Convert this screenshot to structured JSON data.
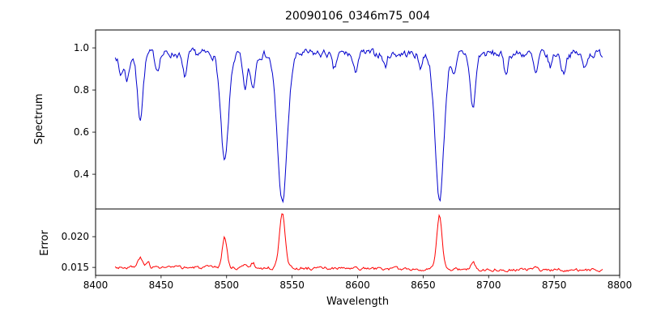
{
  "chart_data": [
    {
      "type": "line",
      "panel": "spectrum",
      "title": "20090106_0346m75_004",
      "ylabel": "Spectrum",
      "xlim": [
        8400,
        8800
      ],
      "ylim": [
        0.235,
        1.085
      ],
      "yticks": [
        0.4,
        0.6,
        0.8,
        1.0
      ],
      "ytick_labels": [
        "0.4",
        "0.6",
        "0.8",
        "1.0"
      ],
      "xticks": [
        8400,
        8450,
        8500,
        8550,
        8600,
        8650,
        8700,
        8750,
        8800
      ],
      "xtick_labels": [
        "8400",
        "8450",
        "8500",
        "8550",
        "8600",
        "8650",
        "8700",
        "8750",
        "8800"
      ],
      "line_color": "#0000cd",
      "grid": false,
      "legend": "none",
      "x_start": 8415,
      "x_end": 8787,
      "step": 0.8,
      "seed": 7,
      "continuum": 0.972,
      "noise_amplitude": 0.016,
      "absorption_lines": [
        {
          "center": 8419,
          "depth": 0.1,
          "width": 1.5
        },
        {
          "center": 8424,
          "depth": 0.12,
          "width": 1.8
        },
        {
          "center": 8434,
          "depth": 0.3,
          "width": 2.2
        },
        {
          "center": 8447,
          "depth": 0.07,
          "width": 1.5
        },
        {
          "center": 8468,
          "depth": 0.11,
          "width": 1.8
        },
        {
          "center": 8498.5,
          "depth": 0.52,
          "width": 3.0
        },
        {
          "center": 8514,
          "depth": 0.17,
          "width": 1.8
        },
        {
          "center": 8520,
          "depth": 0.16,
          "width": 1.8
        },
        {
          "center": 8542.5,
          "depth": 0.7,
          "width": 3.8
        },
        {
          "center": 8582,
          "depth": 0.08,
          "width": 1.6
        },
        {
          "center": 8598,
          "depth": 0.09,
          "width": 1.6
        },
        {
          "center": 8621,
          "depth": 0.06,
          "width": 1.5
        },
        {
          "center": 8648,
          "depth": 0.06,
          "width": 1.5
        },
        {
          "center": 8662.5,
          "depth": 0.69,
          "width": 3.4
        },
        {
          "center": 8674,
          "depth": 0.1,
          "width": 1.6
        },
        {
          "center": 8688,
          "depth": 0.26,
          "width": 2.0
        },
        {
          "center": 8713,
          "depth": 0.09,
          "width": 1.6
        },
        {
          "center": 8736,
          "depth": 0.1,
          "width": 1.7
        },
        {
          "center": 8747,
          "depth": 0.06,
          "width": 1.5
        },
        {
          "center": 8757,
          "depth": 0.09,
          "width": 1.6
        },
        {
          "center": 8773,
          "depth": 0.07,
          "width": 1.5
        }
      ]
    },
    {
      "type": "line",
      "panel": "error",
      "xlabel": "Wavelength",
      "ylabel": "Error",
      "xlim": [
        8400,
        8800
      ],
      "ylim": [
        0.0137,
        0.0245
      ],
      "yticks": [
        0.015,
        0.02
      ],
      "ytick_labels": [
        "0.015",
        "0.020"
      ],
      "line_color": "#ff0000",
      "grid": false,
      "legend": "none",
      "x_start": 8415,
      "x_end": 8787,
      "step": 0.8,
      "seed": 3,
      "base_start": 0.01505,
      "base_end": 0.01455,
      "noise_amplitude": 0.00022,
      "peaks": [
        {
          "center": 8434,
          "height": 0.0016,
          "width": 1.6
        },
        {
          "center": 8440,
          "height": 0.001,
          "width": 1.2
        },
        {
          "center": 8498.5,
          "height": 0.005,
          "width": 1.8
        },
        {
          "center": 8514,
          "height": 0.0008,
          "width": 1.2
        },
        {
          "center": 8520,
          "height": 0.0008,
          "width": 1.2
        },
        {
          "center": 8542.5,
          "height": 0.0092,
          "width": 2.2
        },
        {
          "center": 8662.5,
          "height": 0.0086,
          "width": 2.0
        },
        {
          "center": 8688,
          "height": 0.0013,
          "width": 1.4
        },
        {
          "center": 8736,
          "height": 0.0006,
          "width": 1.2
        }
      ]
    }
  ]
}
